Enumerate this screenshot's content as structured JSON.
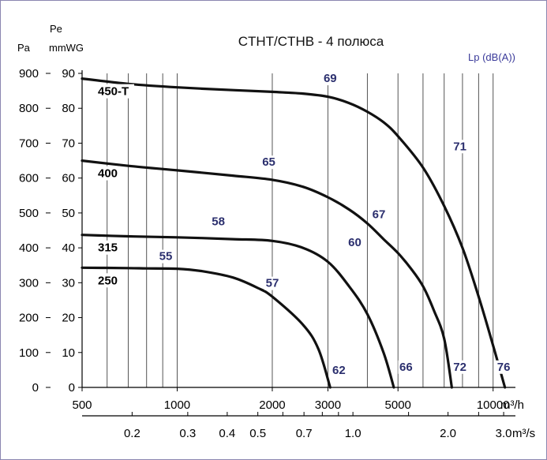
{
  "chart_data": {
    "type": "line",
    "title": "CTHT/CTHB - 4 полюса",
    "y_left_label_pa": "Pa",
    "y_right_label_pe": "Pe",
    "y_right_label_unit": "mmWG",
    "lp_label": "Lp (dB(A))",
    "x_unit_m3h": "m³/h",
    "x_unit_m3s": "m³/s",
    "x_scale": "log",
    "xlim": [
      500,
      11500
    ],
    "ylim": [
      0,
      900
    ],
    "x_ticks_m3h": [
      {
        "value": 500,
        "label": "500"
      },
      {
        "value": 1000,
        "label": "1000"
      },
      {
        "value": 2000,
        "label": "2000"
      },
      {
        "value": 3000,
        "label": "3000"
      },
      {
        "value": 5000,
        "label": "5000"
      },
      {
        "value": 10000,
        "label": "10000"
      }
    ],
    "x_ticks_m3s": [
      {
        "value": 0.2,
        "label": "0.2"
      },
      {
        "value": 0.3,
        "label": "0.3"
      },
      {
        "value": 0.4,
        "label": "0.4"
      },
      {
        "value": 0.5,
        "label": "0.5"
      },
      {
        "value": 0.7,
        "label": "0.7"
      },
      {
        "value": 1.0,
        "label": "1.0"
      },
      {
        "value": 2.0,
        "label": "2.0"
      },
      {
        "value": 3.0,
        "label": "3.0"
      }
    ],
    "y_ticks_pa": [
      "0",
      "100",
      "200",
      "300",
      "400",
      "500",
      "600",
      "700",
      "800",
      "900"
    ],
    "y_ticks_mmwg": [
      "0",
      "10",
      "20",
      "30",
      "40",
      "50",
      "60",
      "70",
      "80",
      "90"
    ],
    "grid": "vertical",
    "colors": {
      "curve": "#111111",
      "db_label": "#2b2f6e",
      "frame": "#8a86b0",
      "lp": "#3a3a9a"
    },
    "series": [
      {
        "name": "450-T",
        "points": [
          [
            500,
            885
          ],
          [
            700,
            870
          ],
          [
            1000,
            860
          ],
          [
            1500,
            852
          ],
          [
            2000,
            847
          ],
          [
            2500,
            842
          ],
          [
            3000,
            833
          ],
          [
            3500,
            815
          ],
          [
            4000,
            790
          ],
          [
            4500,
            760
          ],
          [
            5000,
            720
          ],
          [
            6000,
            630
          ],
          [
            7000,
            520
          ],
          [
            8000,
            400
          ],
          [
            9000,
            260
          ],
          [
            10000,
            120
          ],
          [
            10900,
            0
          ]
        ],
        "db_labels": [
          {
            "x": 3050,
            "y": 875,
            "text": "69"
          },
          {
            "x": 7850,
            "y": 680,
            "text": "71"
          },
          {
            "x": 10800,
            "y": 48,
            "text": "76"
          }
        ]
      },
      {
        "name": "400",
        "points": [
          [
            500,
            650
          ],
          [
            700,
            635
          ],
          [
            1000,
            622
          ],
          [
            1500,
            607
          ],
          [
            2000,
            595
          ],
          [
            2500,
            575
          ],
          [
            3000,
            545
          ],
          [
            3500,
            510
          ],
          [
            4000,
            470
          ],
          [
            4500,
            425
          ],
          [
            5000,
            385
          ],
          [
            5500,
            340
          ],
          [
            6000,
            290
          ],
          [
            6500,
            220
          ],
          [
            7000,
            140
          ],
          [
            7400,
            0
          ]
        ],
        "db_labels": [
          {
            "x": 1950,
            "y": 635,
            "text": "65"
          },
          {
            "x": 4350,
            "y": 485,
            "text": "67"
          },
          {
            "x": 7850,
            "y": 48,
            "text": "72"
          }
        ]
      },
      {
        "name": "315",
        "points": [
          [
            500,
            437
          ],
          [
            700,
            433
          ],
          [
            1000,
            430
          ],
          [
            1500,
            425
          ],
          [
            2000,
            420
          ],
          [
            2500,
            400
          ],
          [
            3000,
            360
          ],
          [
            3500,
            290
          ],
          [
            4000,
            210
          ],
          [
            4500,
            100
          ],
          [
            4850,
            0
          ]
        ],
        "db_labels": [
          {
            "x": 1350,
            "y": 465,
            "text": "58"
          },
          {
            "x": 3650,
            "y": 405,
            "text": "60"
          },
          {
            "x": 5300,
            "y": 48,
            "text": "66"
          }
        ]
      },
      {
        "name": "250",
        "points": [
          [
            500,
            343
          ],
          [
            700,
            342
          ],
          [
            800,
            341
          ],
          [
            1000,
            340
          ],
          [
            1200,
            333
          ],
          [
            1500,
            315
          ],
          [
            1800,
            285
          ],
          [
            2000,
            260
          ],
          [
            2500,
            180
          ],
          [
            2800,
            110
          ],
          [
            3050,
            0
          ]
        ],
        "db_labels": [
          {
            "x": 920,
            "y": 365,
            "text": "55"
          },
          {
            "x": 2000,
            "y": 288,
            "text": "57"
          },
          {
            "x": 3250,
            "y": 38,
            "text": "62"
          }
        ]
      }
    ]
  }
}
